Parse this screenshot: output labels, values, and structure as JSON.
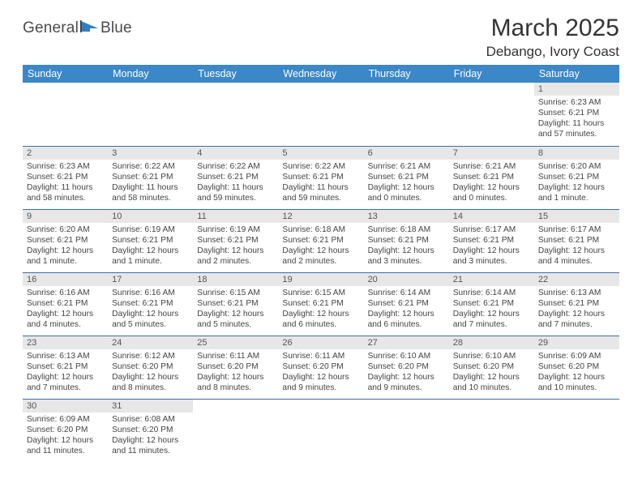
{
  "brand": {
    "text1": "General",
    "text2": "Blue"
  },
  "title": "March 2025",
  "location": "Debango, Ivory Coast",
  "colors": {
    "header_bg": "#3b87c8",
    "header_fg": "#ffffff",
    "row_divider": "#3b6fa8",
    "day_num_bg": "#e7e7e7",
    "day_num_fg": "#555555",
    "body_text": "#444444",
    "brand_blue": "#2e7fbf"
  },
  "weekdays": [
    "Sunday",
    "Monday",
    "Tuesday",
    "Wednesday",
    "Thursday",
    "Friday",
    "Saturday"
  ],
  "grid": [
    [
      null,
      null,
      null,
      null,
      null,
      null,
      {
        "n": "1",
        "sr": "6:23 AM",
        "ss": "6:21 PM",
        "dl": "11 hours and 57 minutes."
      }
    ],
    [
      {
        "n": "2",
        "sr": "6:23 AM",
        "ss": "6:21 PM",
        "dl": "11 hours and 58 minutes."
      },
      {
        "n": "3",
        "sr": "6:22 AM",
        "ss": "6:21 PM",
        "dl": "11 hours and 58 minutes."
      },
      {
        "n": "4",
        "sr": "6:22 AM",
        "ss": "6:21 PM",
        "dl": "11 hours and 59 minutes."
      },
      {
        "n": "5",
        "sr": "6:22 AM",
        "ss": "6:21 PM",
        "dl": "11 hours and 59 minutes."
      },
      {
        "n": "6",
        "sr": "6:21 AM",
        "ss": "6:21 PM",
        "dl": "12 hours and 0 minutes."
      },
      {
        "n": "7",
        "sr": "6:21 AM",
        "ss": "6:21 PM",
        "dl": "12 hours and 0 minutes."
      },
      {
        "n": "8",
        "sr": "6:20 AM",
        "ss": "6:21 PM",
        "dl": "12 hours and 1 minute."
      }
    ],
    [
      {
        "n": "9",
        "sr": "6:20 AM",
        "ss": "6:21 PM",
        "dl": "12 hours and 1 minute."
      },
      {
        "n": "10",
        "sr": "6:19 AM",
        "ss": "6:21 PM",
        "dl": "12 hours and 1 minute."
      },
      {
        "n": "11",
        "sr": "6:19 AM",
        "ss": "6:21 PM",
        "dl": "12 hours and 2 minutes."
      },
      {
        "n": "12",
        "sr": "6:18 AM",
        "ss": "6:21 PM",
        "dl": "12 hours and 2 minutes."
      },
      {
        "n": "13",
        "sr": "6:18 AM",
        "ss": "6:21 PM",
        "dl": "12 hours and 3 minutes."
      },
      {
        "n": "14",
        "sr": "6:17 AM",
        "ss": "6:21 PM",
        "dl": "12 hours and 3 minutes."
      },
      {
        "n": "15",
        "sr": "6:17 AM",
        "ss": "6:21 PM",
        "dl": "12 hours and 4 minutes."
      }
    ],
    [
      {
        "n": "16",
        "sr": "6:16 AM",
        "ss": "6:21 PM",
        "dl": "12 hours and 4 minutes."
      },
      {
        "n": "17",
        "sr": "6:16 AM",
        "ss": "6:21 PM",
        "dl": "12 hours and 5 minutes."
      },
      {
        "n": "18",
        "sr": "6:15 AM",
        "ss": "6:21 PM",
        "dl": "12 hours and 5 minutes."
      },
      {
        "n": "19",
        "sr": "6:15 AM",
        "ss": "6:21 PM",
        "dl": "12 hours and 6 minutes."
      },
      {
        "n": "20",
        "sr": "6:14 AM",
        "ss": "6:21 PM",
        "dl": "12 hours and 6 minutes."
      },
      {
        "n": "21",
        "sr": "6:14 AM",
        "ss": "6:21 PM",
        "dl": "12 hours and 7 minutes."
      },
      {
        "n": "22",
        "sr": "6:13 AM",
        "ss": "6:21 PM",
        "dl": "12 hours and 7 minutes."
      }
    ],
    [
      {
        "n": "23",
        "sr": "6:13 AM",
        "ss": "6:21 PM",
        "dl": "12 hours and 7 minutes."
      },
      {
        "n": "24",
        "sr": "6:12 AM",
        "ss": "6:20 PM",
        "dl": "12 hours and 8 minutes."
      },
      {
        "n": "25",
        "sr": "6:11 AM",
        "ss": "6:20 PM",
        "dl": "12 hours and 8 minutes."
      },
      {
        "n": "26",
        "sr": "6:11 AM",
        "ss": "6:20 PM",
        "dl": "12 hours and 9 minutes."
      },
      {
        "n": "27",
        "sr": "6:10 AM",
        "ss": "6:20 PM",
        "dl": "12 hours and 9 minutes."
      },
      {
        "n": "28",
        "sr": "6:10 AM",
        "ss": "6:20 PM",
        "dl": "12 hours and 10 minutes."
      },
      {
        "n": "29",
        "sr": "6:09 AM",
        "ss": "6:20 PM",
        "dl": "12 hours and 10 minutes."
      }
    ],
    [
      {
        "n": "30",
        "sr": "6:09 AM",
        "ss": "6:20 PM",
        "dl": "12 hours and 11 minutes."
      },
      {
        "n": "31",
        "sr": "6:08 AM",
        "ss": "6:20 PM",
        "dl": "12 hours and 11 minutes."
      },
      null,
      null,
      null,
      null,
      null
    ]
  ],
  "labels": {
    "sunrise": "Sunrise:",
    "sunset": "Sunset:",
    "daylight": "Daylight:"
  }
}
